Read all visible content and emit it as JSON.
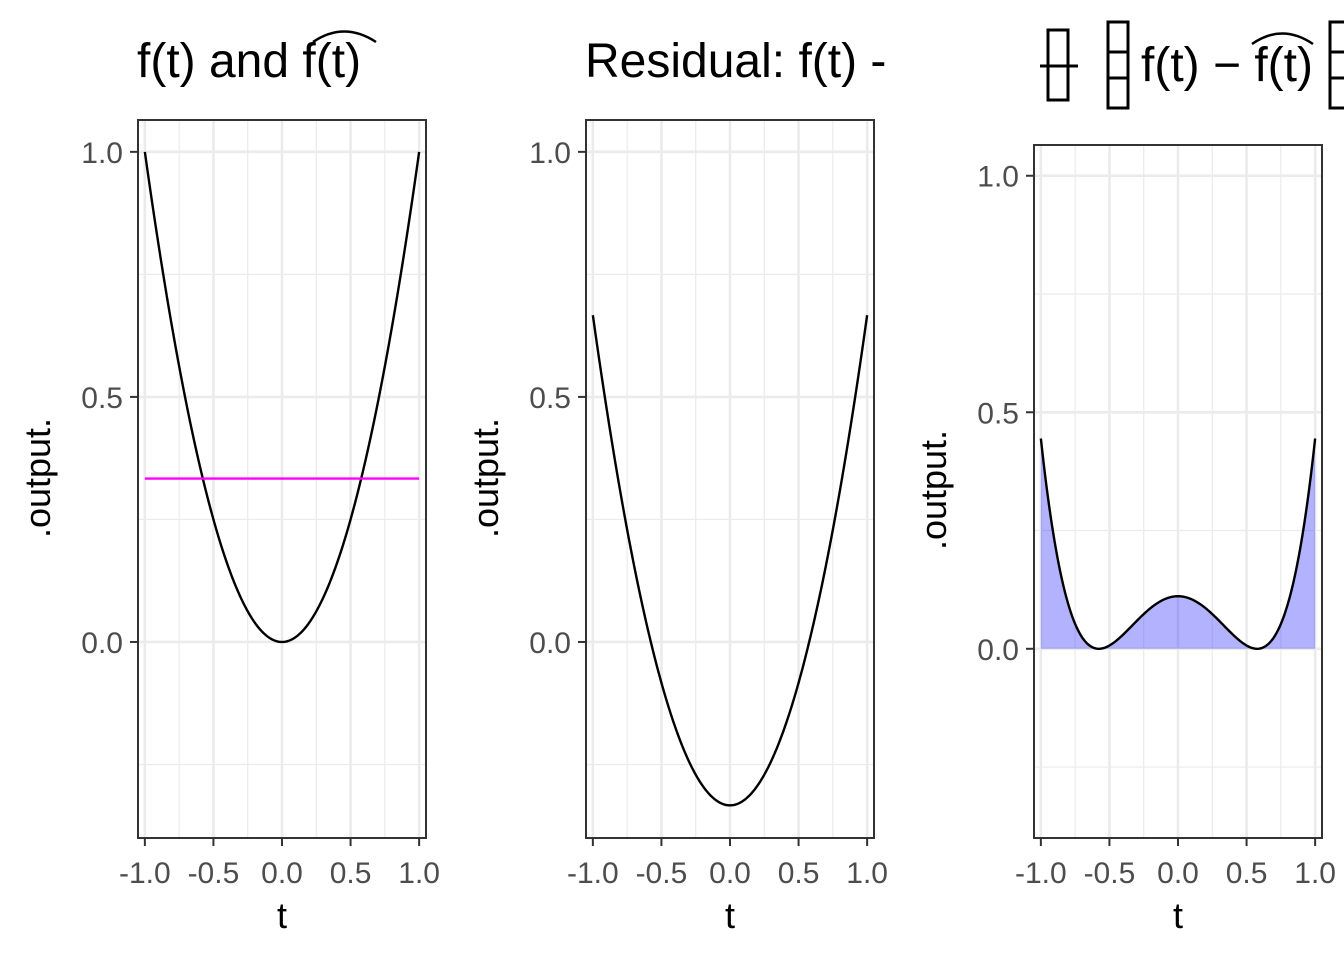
{
  "colors": {
    "grid": "#ebebeb",
    "panel_border": "#333333",
    "line": "#000000",
    "fit_line": "#ff00ff",
    "fill": "#0000ff"
  },
  "chart_data": [
    {
      "type": "line",
      "title": "f(t) and f(t)",
      "title_main": "f(t) and ",
      "title_hat": "f(t)",
      "xlabel": "t",
      "ylabel": ".output.",
      "xlim": [
        -1.05,
        1.05
      ],
      "ylim": [
        -0.4,
        1.065
      ],
      "xticks": [
        -1.0,
        -0.5,
        0.0,
        0.5,
        1.0
      ],
      "xtick_labels": [
        "-1.0",
        "-0.5",
        "0.0",
        "0.5",
        "1.0"
      ],
      "yticks": [
        0.0,
        0.5,
        1.0
      ],
      "ytick_labels": [
        "0.0",
        "0.5",
        "1.0"
      ],
      "grid": true,
      "legend": "none",
      "series": [
        {
          "function": "t^2",
          "x": [
            -1.0,
            -0.9,
            -0.8,
            -0.7,
            -0.6,
            -0.5,
            -0.4,
            -0.3,
            -0.2,
            -0.1,
            0.0,
            0.1,
            0.2,
            0.3,
            0.4,
            0.5,
            0.6,
            0.7,
            0.8,
            0.9,
            1.0
          ],
          "values": [
            1.0,
            0.81,
            0.64,
            0.49,
            0.36,
            0.25,
            0.16,
            0.09,
            0.04,
            0.01,
            0.0,
            0.01,
            0.04,
            0.09,
            0.16,
            0.25,
            0.36,
            0.49,
            0.64,
            0.81,
            1.0
          ]
        },
        {
          "function": "1/3",
          "x": [
            -1.0,
            1.0
          ],
          "values": [
            0.3333,
            0.3333
          ]
        }
      ]
    },
    {
      "type": "line",
      "title": "Residual: f(t) -",
      "xlabel": "t",
      "ylabel": ".output.",
      "xlim": [
        -1.05,
        1.05
      ],
      "ylim": [
        -0.4,
        1.065
      ],
      "xticks": [
        -1.0,
        -0.5,
        0.0,
        0.5,
        1.0
      ],
      "xtick_labels": [
        "-1.0",
        "-0.5",
        "0.0",
        "0.5",
        "1.0"
      ],
      "yticks": [
        0.0,
        0.5,
        1.0
      ],
      "ytick_labels": [
        "0.0",
        "0.5",
        "1.0"
      ],
      "grid": true,
      "legend": "none",
      "series": [
        {
          "function": "t^2 - 1/3",
          "x": [
            -1.0,
            -0.9,
            -0.8,
            -0.7,
            -0.6,
            -0.5,
            -0.4,
            -0.3,
            -0.2,
            -0.1,
            0.0,
            0.1,
            0.2,
            0.3,
            0.4,
            0.5,
            0.6,
            0.7,
            0.8,
            0.9,
            1.0
          ],
          "values": [
            0.6667,
            0.4767,
            0.3067,
            0.1567,
            0.0267,
            -0.0833,
            -0.1733,
            -0.2433,
            -0.2933,
            -0.3233,
            -0.3333,
            -0.3233,
            -0.2933,
            -0.2433,
            -0.1733,
            -0.0833,
            0.0267,
            0.1567,
            0.3067,
            0.4767,
            0.6667
          ]
        }
      ]
    },
    {
      "type": "area",
      "title": "f(t) − f(t)",
      "title_main": "f(t) − ",
      "title_hat": "f(t)",
      "xlabel": "t",
      "ylabel": ".output.",
      "xlim": [
        -1.05,
        1.05
      ],
      "ylim": [
        -0.4,
        1.065
      ],
      "xticks": [
        -1.0,
        -0.5,
        0.0,
        0.5,
        1.0
      ],
      "xtick_labels": [
        "-1.0",
        "-0.5",
        "0.0",
        "0.5",
        "1.0"
      ],
      "yticks": [
        0.0,
        0.5,
        1.0
      ],
      "ytick_labels": [
        "0.0",
        "0.5",
        "1.0"
      ],
      "grid": true,
      "legend": "none",
      "series": [
        {
          "function": "(t^2 - 1/3)^2",
          "x": [
            -1.0,
            -0.9,
            -0.8,
            -0.7,
            -0.6,
            -0.5,
            -0.4,
            -0.3,
            -0.2,
            -0.1,
            0.0,
            0.1,
            0.2,
            0.3,
            0.4,
            0.5,
            0.6,
            0.7,
            0.8,
            0.9,
            1.0
          ],
          "values": [
            0.4444,
            0.2272,
            0.094,
            0.0245,
            0.0007,
            0.0069,
            0.03,
            0.0592,
            0.086,
            0.1045,
            0.1111,
            0.1045,
            0.086,
            0.0592,
            0.03,
            0.0069,
            0.0007,
            0.0245,
            0.094,
            0.2272,
            0.4444
          ]
        }
      ]
    }
  ]
}
